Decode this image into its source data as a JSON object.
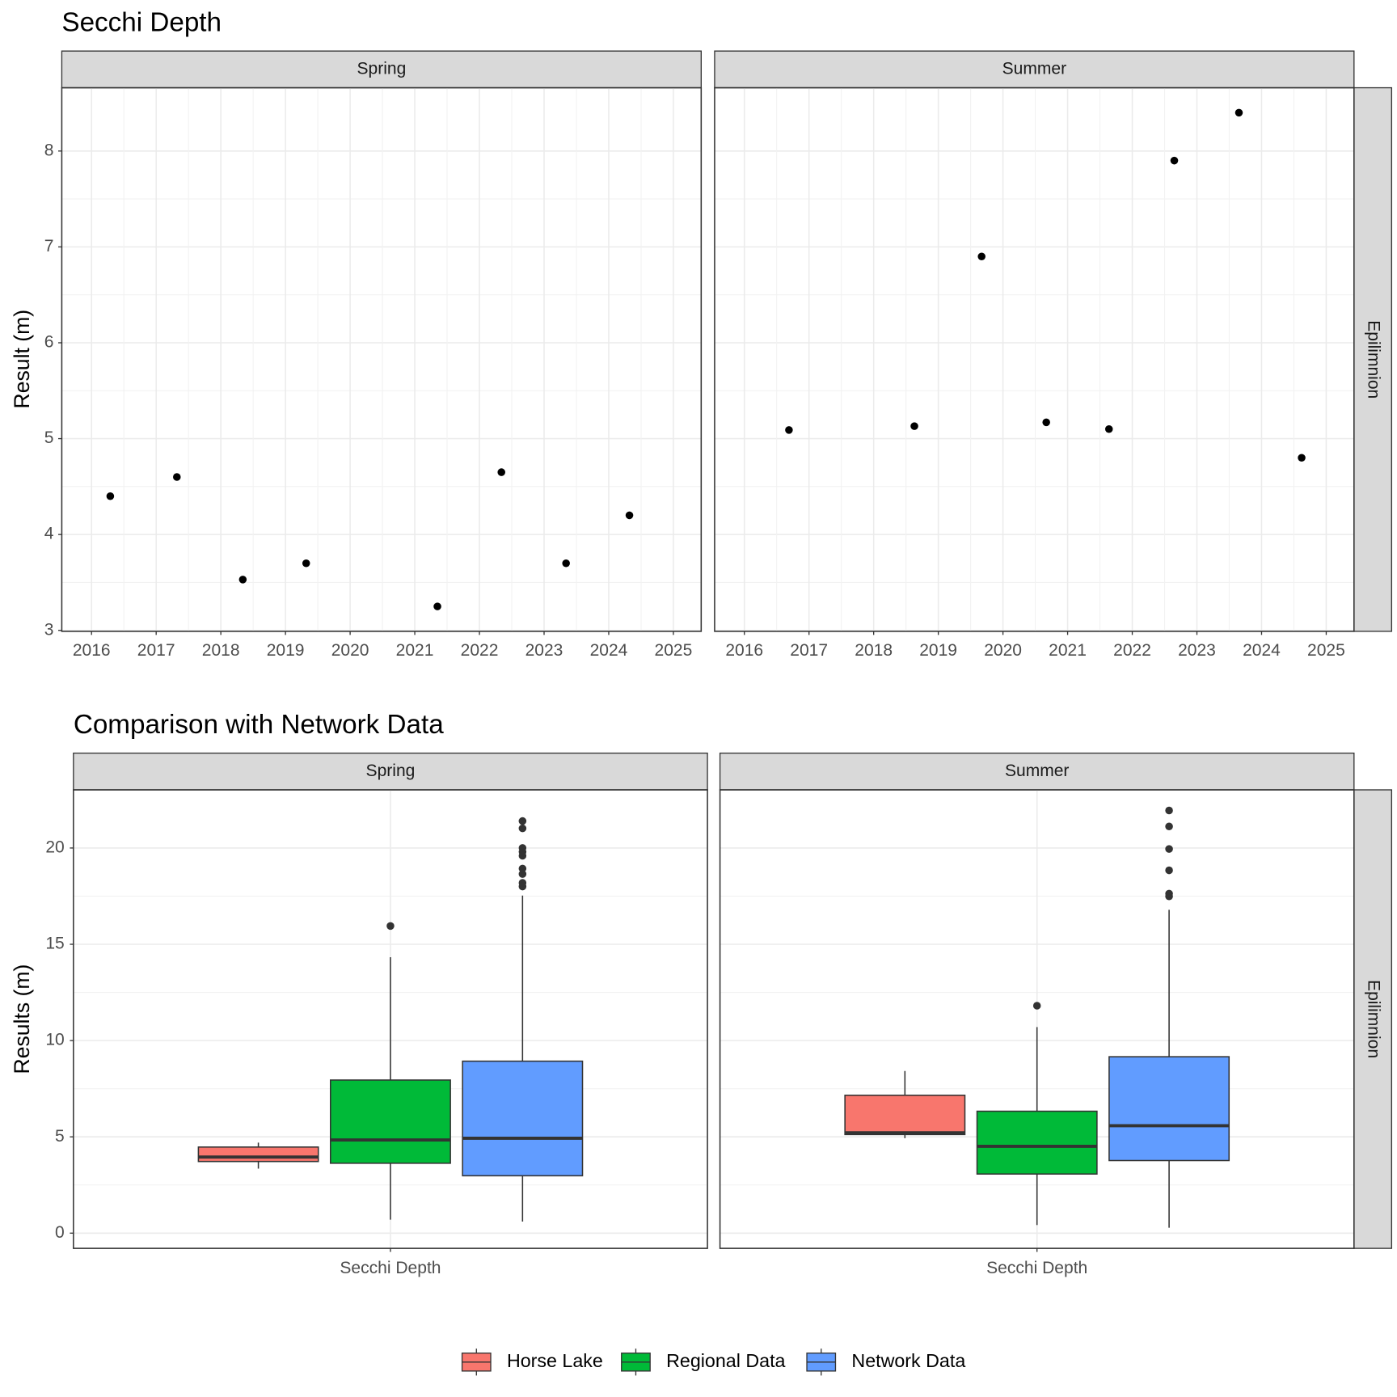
{
  "chart_data": [
    {
      "type": "scatter",
      "title": "Secchi Depth",
      "y_label": "Result (m)",
      "row_label": "Epilimnion",
      "color": "#000000",
      "grid": true,
      "xlim": [
        2015.54,
        2025.43
      ],
      "xticks": [
        2016,
        2017,
        2018,
        2019,
        2020,
        2021,
        2022,
        2023,
        2024,
        2025
      ],
      "ylim": [
        2.99,
        8.66
      ],
      "yticks": [
        3,
        4,
        5,
        6,
        7,
        8
      ],
      "panels": [
        {
          "name": "Spring",
          "x": [
            2016.29,
            2017.32,
            2018.34,
            2019.32,
            2021.35,
            2022.34,
            2023.34,
            2024.32
          ],
          "values": [
            4.4,
            4.6,
            3.53,
            3.7,
            3.25,
            4.65,
            3.7,
            4.2
          ]
        },
        {
          "name": "Summer",
          "x": [
            2016.69,
            2018.63,
            2019.67,
            2020.67,
            2021.64,
            2022.65,
            2023.65,
            2024.62
          ],
          "values": [
            5.09,
            5.13,
            6.9,
            5.17,
            5.1,
            7.9,
            8.4,
            4.8
          ]
        }
      ]
    },
    {
      "type": "boxplot",
      "title": "Comparison with Network Data",
      "y_label": "Results (m)",
      "row_label": "Epilimnion",
      "category": "Secchi Depth",
      "facets": [
        "Spring",
        "Summer"
      ],
      "grid": true,
      "legend": "bottom",
      "ylim": [
        -0.79,
        23.02
      ],
      "yticks": [
        0,
        5,
        10,
        15,
        20
      ],
      "series": [
        {
          "name": "Horse Lake",
          "color": "#F8766D",
          "values": [
            {
              "min": 3.35,
              "q1": 3.72,
              "median": 3.95,
              "q3": 4.47,
              "max": 4.7,
              "outliers": []
            },
            {
              "min": 4.93,
              "q1": 5.12,
              "median": 5.21,
              "q3": 7.16,
              "max": 8.42,
              "outliers": []
            }
          ]
        },
        {
          "name": "Regional Data",
          "color": "#00BA38",
          "values": [
            {
              "min": 0.7,
              "q1": 3.63,
              "median": 4.84,
              "q3": 7.95,
              "max": 14.33,
              "outliers": [
                15.95
              ]
            },
            {
              "min": 0.42,
              "q1": 3.07,
              "median": 4.51,
              "q3": 6.33,
              "max": 10.7,
              "outliers": [
                11.81
              ]
            }
          ]
        },
        {
          "name": "Network Data",
          "color": "#619CFF",
          "values": [
            {
              "min": 0.6,
              "q1": 2.98,
              "median": 4.93,
              "q3": 8.93,
              "max": 17.53,
              "outliers": [
                21.4,
                21.02,
                20,
                19.8,
                19.6,
                18.93,
                18.65,
                18.19,
                18
              ]
            },
            {
              "min": 0.28,
              "q1": 3.77,
              "median": 5.58,
              "q3": 9.16,
              "max": 16.79,
              "outliers": [
                21.95,
                21.12,
                19.95,
                18.84,
                17.63,
                17.49
              ]
            }
          ]
        }
      ]
    }
  ]
}
